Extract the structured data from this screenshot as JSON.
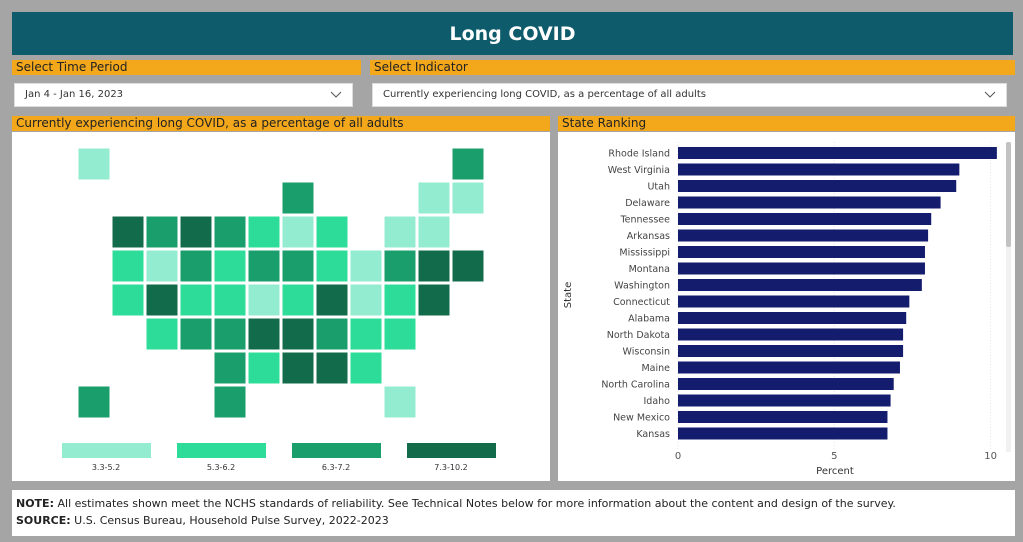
{
  "header": {
    "title": "Long COVID"
  },
  "filters": [
    {
      "label": "Select Time Period",
      "value": "Jan 4 - Jan 16, 2023"
    },
    {
      "label": "Select Indicator",
      "value": "Currently experiencing long COVID, as a percentage of all adults"
    }
  ],
  "map": {
    "title": "Currently experiencing long COVID, as a percentage of all adults",
    "legend": [
      {
        "label": "3.3-5.2",
        "color": "#94ecd0"
      },
      {
        "label": "5.3-6.2",
        "color": "#2ddc98"
      },
      {
        "label": "6.3-7.2",
        "color": "#1a9e6c"
      },
      {
        "label": "7.3-10.2",
        "color": "#126b4a"
      }
    ]
  },
  "chart_data": {
    "type": "hbar",
    "title": "State Ranking",
    "x_label": "Percent",
    "y_label": "State",
    "color": "#141c6e",
    "categories": [
      "Rhode Island",
      "West Virginia",
      "Utah",
      "Delaware",
      "Tennessee",
      "Arkansas",
      "Mississippi",
      "Montana",
      "Washington",
      "Connecticut",
      "Alabama",
      "North Dakota",
      "Wisconsin",
      "Maine",
      "North Carolina",
      "Idaho",
      "New Mexico",
      "Kansas"
    ],
    "values": [
      10.2,
      9.0,
      8.9,
      8.4,
      8.1,
      8.0,
      7.9,
      7.9,
      7.8,
      7.4,
      7.3,
      7.2,
      7.2,
      7.1,
      6.9,
      6.8,
      6.7,
      6.7
    ],
    "xlim": [
      0,
      10.3
    ],
    "xticks": [
      0,
      5,
      10
    ],
    "grid": true
  },
  "notes": {
    "note_label": "NOTE:",
    "note": "All estimates shown meet the NCHS standards of reliability. See Technical Notes below for more information about the content and design of the survey.",
    "source_label": "SOURCE:",
    "source": "U.S. Census Bureau, Household Pulse Survey, 2022-2023"
  }
}
